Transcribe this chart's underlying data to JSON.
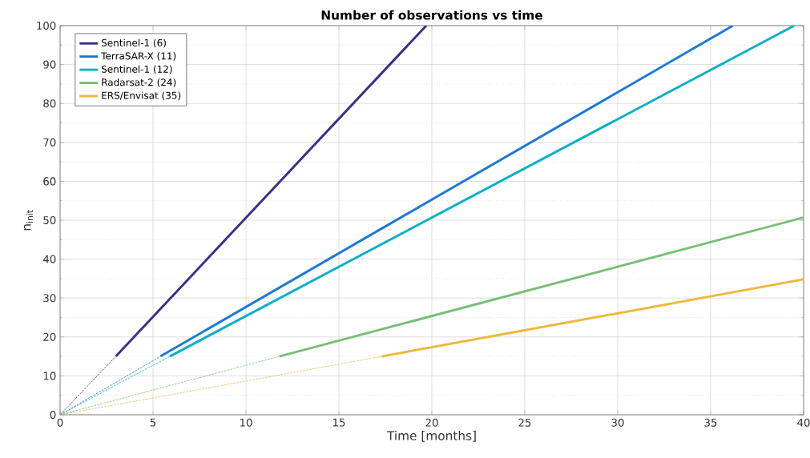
{
  "chart_data": {
    "type": "line",
    "title": "Number of observations vs time",
    "xlabel": "Time [months]",
    "ylabel": "n$_{init}$",
    "xlim": [
      0,
      40
    ],
    "xticks": [
      0,
      5,
      10,
      15,
      20,
      25,
      30,
      35,
      40
    ],
    "ylim": [
      0,
      100
    ],
    "yticks": [
      0,
      {
        "value": 5,
        "label": null
      },
      10,
      {
        "value": 15,
        "label": null
      },
      20,
      {
        "value": 25,
        "label": null
      },
      30,
      {
        "value": 35,
        "label": null
      },
      40,
      {
        "value": 45,
        "label": null
      },
      50,
      {
        "value": 55,
        "label": null
      },
      60,
      {
        "value": 65,
        "label": null
      },
      70,
      {
        "value": 75,
        "label": null
      },
      80,
      {
        "value": 85,
        "label": null
      },
      90,
      {
        "value": 95,
        "label": null
      },
      100
    ],
    "grid": true,
    "legend": "top left",
    "line_style": "solid",
    "series": [
      {
        "name": "Sentinel-1 (6)",
        "color": "#3a2d8c",
        "x": [
          3.0,
          19.7
        ],
        "values": [
          15,
          100
        ]
      },
      {
        "name": "TerraSAR-X (11)",
        "color": "#1a78d8",
        "x": [
          5.4,
          36.2
        ],
        "values": [
          15,
          100
        ]
      },
      {
        "name": "Sentinel-1 (12)",
        "color": "#0ab0c8",
        "x": [
          5.9,
          39.5
        ],
        "values": [
          15,
          100
        ]
      },
      {
        "name": "Radarsat-2 (24)",
        "color": "#77bf77",
        "x": [
          11.8,
          40
        ],
        "values": [
          15,
          50.7
        ]
      },
      {
        "name": "ERS/Envisat (35)",
        "color": "#edb73e",
        "x": [
          17.3,
          40
        ],
        "values": [
          15,
          34.8
        ]
      },
      {
        "color": "#3a2d8c",
        "x": [
          0,
          3.0
        ],
        "values": [
          0,
          15
        ],
        "line_style": "dashed"
      },
      {
        "color": "#1a78d8",
        "x": [
          0,
          5.4
        ],
        "values": [
          0,
          15
        ],
        "line_style": "dashed"
      },
      {
        "color": "#0ab0c8",
        "x": [
          0,
          5.9
        ],
        "values": [
          0,
          15
        ],
        "line_style": "dashed"
      },
      {
        "color": "#77bf77",
        "x": [
          0,
          11.8
        ],
        "values": [
          0,
          15
        ],
        "line_style": "dashed"
      },
      {
        "color": "#edb73e",
        "x": [
          0,
          17.3
        ],
        "values": [
          0,
          15
        ],
        "line_style": "dashed"
      }
    ]
  }
}
